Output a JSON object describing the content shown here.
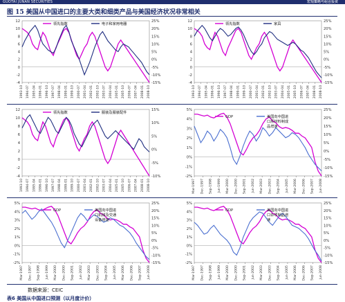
{
  "header": {
    "brand": "GUOTAI JUNAN SECURITIES",
    "right_text": "宏观策略与组合投资"
  },
  "figure": {
    "title": "图 15   美国从中国进口的主要大类和细类产品与美国经济状况非常相关"
  },
  "footer": {
    "source": "数据来源：CEIC",
    "next_title": "表6   美国从中国进口预测（以月度计价）"
  },
  "colors": {
    "pink": "#d400d4",
    "navy": "#1f2e80",
    "blue": "#4a6fd0",
    "header": "#1f2e6e"
  },
  "chart_data": [
    {
      "type": "line",
      "legend": [
        "领先指数",
        "电子和家用电器"
      ],
      "yleft": {
        "range": [
          -4,
          12
        ],
        "ticks": [
          "12",
          "10",
          "8",
          "6",
          "4",
          "2",
          "0",
          "-2",
          "-4"
        ]
      },
      "yright": {
        "range": [
          -15,
          25
        ],
        "ticks": [
          "25%",
          "20%",
          "15%",
          "10%",
          "5%",
          "0%",
          "-5%",
          "-10%",
          "-15%"
        ]
      },
      "xticks": [
        "1993-10",
        "1994-07",
        "1995-04",
        "1996-01",
        "1996-10",
        "1997-07",
        "1998-04",
        "1999-01",
        "1999-10",
        "2000-07",
        "2001-04",
        "2002-01",
        "2002-10",
        "2003-07",
        "2004-04",
        "2005-01",
        "2005-10",
        "2006-07",
        "2007-04",
        "2008-01",
        "2008-10"
      ],
      "series": [
        {
          "name": "领先指数",
          "axis": "left",
          "color": "pink",
          "values": [
            10,
            9.5,
            9,
            8,
            6,
            5,
            4.5,
            7,
            9,
            8,
            6,
            4,
            3,
            5,
            6.5,
            8,
            9.5,
            10,
            9,
            7,
            5,
            3,
            2,
            3.5,
            5,
            6,
            8,
            9,
            8,
            6,
            4,
            2,
            0,
            -1,
            0,
            2,
            4,
            6,
            7,
            6,
            5,
            4,
            3,
            2,
            1,
            0,
            -1,
            -2,
            -3,
            -4
          ]
        },
        {
          "name": "电子和家用电器",
          "axis": "right",
          "color": "navy",
          "values": [
            8,
            12,
            15,
            18,
            20,
            22,
            19,
            14,
            10,
            8,
            6,
            5,
            4,
            7,
            12,
            16,
            20,
            22,
            18,
            12,
            8,
            4,
            0,
            -5,
            -10,
            -6,
            -2,
            3,
            8,
            12,
            16,
            18,
            15,
            12,
            10,
            8,
            6,
            5,
            8,
            10,
            9,
            8,
            6,
            4,
            2,
            0,
            -2,
            -5,
            -8,
            -10
          ]
        }
      ]
    },
    {
      "type": "line",
      "legend": [
        "领先指数",
        "家具"
      ],
      "yleft": {
        "range": [
          -4,
          12
        ],
        "ticks": [
          "12",
          "10",
          "8",
          "6",
          "4",
          "2",
          "0",
          "-2",
          "-4"
        ]
      },
      "yright": {
        "range": [
          -15,
          25
        ],
        "ticks": [
          "25%",
          "20%",
          "15%",
          "10%",
          "5%",
          "0%",
          "-5%",
          "-10%",
          "-15%"
        ]
      },
      "xticks": [
        "1993-10",
        "1994-07",
        "1995-04",
        "1996-01",
        "1996-10",
        "1997-07",
        "1998-04",
        "1999-01",
        "1999-10",
        "2000-07",
        "2001-04",
        "2002-01",
        "2002-10",
        "2003-07",
        "2004-04",
        "2005-01",
        "2005-10",
        "2006-07",
        "2007-04",
        "2008-01",
        "2008-10"
      ],
      "series": [
        {
          "name": "领先指数",
          "axis": "left",
          "color": "pink",
          "values": [
            10,
            9.5,
            9,
            8,
            6,
            5,
            4.5,
            7,
            9,
            8,
            6,
            4,
            3,
            5,
            6.5,
            8,
            9.5,
            10,
            9,
            7,
            5,
            3,
            2,
            3.5,
            5,
            6,
            8,
            9,
            8,
            6,
            4,
            2,
            0,
            -1,
            0,
            2,
            4,
            6,
            7,
            6,
            5,
            4,
            3,
            2,
            1,
            0,
            -1,
            -2,
            -3,
            -4
          ]
        },
        {
          "name": "家具",
          "axis": "right",
          "color": "navy",
          "values": [
            15,
            18,
            20,
            22,
            20,
            17,
            14,
            12,
            15,
            18,
            20,
            19,
            17,
            15,
            16,
            18,
            20,
            21,
            19,
            16,
            12,
            8,
            5,
            3,
            5,
            8,
            10,
            14,
            16,
            18,
            17,
            15,
            13,
            12,
            11,
            10,
            9,
            10,
            11,
            10,
            8,
            6,
            5,
            3,
            1,
            -2,
            -5,
            -8,
            -10,
            -12
          ]
        }
      ]
    },
    {
      "type": "line",
      "legend": [
        "领先指数",
        "服装及服装配件"
      ],
      "yleft": {
        "range": [
          -4,
          12
        ],
        "ticks": [
          "12",
          "10",
          "8",
          "6",
          "4",
          "2",
          "0",
          "-2",
          "-4"
        ]
      },
      "yright": {
        "range": [
          -10,
          15
        ],
        "ticks": [
          "15%",
          "10%",
          "5%",
          "0%",
          "-5%",
          "-10%"
        ]
      },
      "xticks": [
        "1993-10",
        "1994-07",
        "1995-04",
        "1996-01",
        "1996-10",
        "1997-07",
        "1998-04",
        "1999-01",
        "1999-10",
        "2000-07",
        "2001-04",
        "2002-01",
        "2002-10",
        "2003-07",
        "2004-04",
        "2005-01",
        "2005-10",
        "2006-07",
        "2007-04",
        "2008-01",
        "2008-10"
      ],
      "series": [
        {
          "name": "领先指数",
          "axis": "left",
          "color": "pink",
          "values": [
            10,
            9.5,
            9,
            8,
            6,
            5,
            4.5,
            7,
            9,
            8,
            6,
            4,
            3,
            5,
            6.5,
            8,
            9.5,
            10,
            9,
            7,
            5,
            3,
            2,
            3.5,
            5,
            6,
            8,
            9,
            8,
            6,
            4,
            2,
            0,
            -1,
            0,
            2,
            4,
            6,
            7,
            6,
            5,
            4,
            3,
            2,
            1,
            0,
            -1,
            -2,
            -3,
            -4
          ]
        },
        {
          "name": "服装及服装配件",
          "axis": "right",
          "color": "navy",
          "values": [
            8,
            10,
            12,
            13,
            11,
            9,
            7,
            6,
            8,
            10,
            12,
            11,
            9,
            7,
            6,
            8,
            10,
            12,
            11,
            9,
            6,
            4,
            2,
            1,
            3,
            5,
            7,
            9,
            10,
            11,
            9,
            7,
            5,
            4,
            5,
            6,
            7,
            6,
            5,
            4,
            3,
            2,
            1,
            0,
            2,
            4,
            3,
            1,
            0,
            -1
          ]
        }
      ]
    },
    {
      "type": "line",
      "legend": [
        "GDP",
        "美国向中国进口原材料制成品增速"
      ],
      "yleft": {
        "range": [
          -2,
          5
        ],
        "ticks": [
          "5%",
          "4%",
          "3%",
          "2%",
          "1%",
          "0%",
          "-1%",
          "-2%"
        ]
      },
      "yright": {
        "range": [
          -15,
          25
        ],
        "ticks": [
          "25%",
          "20%",
          "15%",
          "10%",
          "5%",
          "0%",
          "-5%",
          "-10%",
          "-15%"
        ]
      },
      "xticks": [
        "Mar-1997",
        "Dec-1997",
        "Sep-1998",
        "Jun-1999",
        "Mar-2000",
        "Dec-2000",
        "Sep-2001",
        "Jun-2002",
        "Mar-2003",
        "Dec-2003",
        "Sep-2004",
        "Jun-2005",
        "Mar-2006",
        "Dec-2006",
        "Sep-2007",
        "Jun-2008"
      ],
      "series": [
        {
          "name": "GDP",
          "axis": "left",
          "color": "pink",
          "values": [
            4.5,
            4.5,
            4.4,
            4.3,
            4.4,
            4.2,
            4.1,
            4.3,
            4.5,
            4.6,
            4.2,
            3.5,
            2.5,
            1.5,
            0.5,
            0.2,
            0.8,
            1.5,
            2.0,
            2.3,
            2.8,
            3.5,
            4.0,
            4.2,
            3.8,
            3.6,
            3.2,
            3.0,
            3.1,
            3.0,
            2.8,
            2.5,
            2.5,
            2.2,
            2.0,
            1.5,
            1.0,
            -0.5,
            -1.5,
            -2.0
          ]
        },
        {
          "name": "美国向中国进口原材料制成品增速",
          "axis": "right",
          "color": "blue",
          "values": [
            15,
            10,
            5,
            8,
            12,
            10,
            6,
            9,
            13,
            11,
            8,
            2,
            -5,
            -8,
            -3,
            3,
            8,
            12,
            10,
            6,
            9,
            14,
            12,
            9,
            11,
            14,
            12,
            10,
            8,
            9,
            11,
            10,
            8,
            5,
            2,
            -2,
            -5,
            -8,
            -10,
            -12
          ]
        }
      ]
    },
    {
      "type": "line",
      "legend": [
        "GDP",
        "美国向中国进口机械及交通设备增速"
      ],
      "yleft": {
        "range": [
          -2,
          5
        ],
        "ticks": [
          "5%",
          "4%",
          "3%",
          "2%",
          "1%",
          "0%",
          "-1%",
          "-2%"
        ]
      },
      "yright": {
        "range": [
          -15,
          25
        ],
        "ticks": [
          "25%",
          "20%",
          "15%",
          "10%",
          "5%",
          "0%",
          "-5%",
          "-10%",
          "-15%"
        ]
      },
      "xticks": [
        "Mar-1997",
        "Dec-1997",
        "Sep-1998",
        "Jun-1999",
        "Mar-2000",
        "Dec-2000",
        "Sep-2001",
        "Jun-2002",
        "Mar-2003",
        "Dec-2003",
        "Sep-2004",
        "Jun-2005",
        "Mar-2006",
        "Dec-2006",
        "Sep-2007",
        "Jun-2008"
      ],
      "series": [
        {
          "name": "GDP",
          "axis": "left",
          "color": "pink",
          "values": [
            4.5,
            4.5,
            4.4,
            4.3,
            4.4,
            4.2,
            4.1,
            4.3,
            4.5,
            4.6,
            4.2,
            3.5,
            2.5,
            1.5,
            0.5,
            0.2,
            0.8,
            1.5,
            2.0,
            2.3,
            2.8,
            3.5,
            4.0,
            4.2,
            3.8,
            3.6,
            3.2,
            3.0,
            3.1,
            3.0,
            2.8,
            2.5,
            2.5,
            2.2,
            2.0,
            1.5,
            1.0,
            -0.5,
            -1.5,
            -2.0
          ]
        },
        {
          "name": "美国向中国进口机械及交通设备增速",
          "axis": "right",
          "color": "blue",
          "values": [
            18,
            20,
            17,
            14,
            16,
            19,
            21,
            18,
            15,
            12,
            8,
            3,
            -2,
            -5,
            0,
            5,
            10,
            15,
            18,
            16,
            13,
            15,
            17,
            16,
            14,
            12,
            13,
            15,
            14,
            12,
            10,
            9,
            7,
            5,
            2,
            -2,
            -5,
            -8,
            -11,
            -13
          ]
        }
      ]
    },
    {
      "type": "line",
      "legend": [
        "GDP",
        "美国向中国进口杂项制品增速"
      ],
      "yleft": {
        "range": [
          -2,
          5
        ],
        "ticks": [
          "5%",
          "4%",
          "3%",
          "2%",
          "1%",
          "0%",
          "-1%",
          "-2%"
        ]
      },
      "yright": {
        "range": [
          -15,
          25
        ],
        "ticks": [
          "25%",
          "20%",
          "15%",
          "10%",
          "5%",
          "0%",
          "-5%",
          "-10%",
          "-15%"
        ]
      },
      "xticks": [
        "Mar-1997",
        "Dec-1997",
        "Sep-1998",
        "Jun-1999",
        "Mar-2000",
        "Dec-2000",
        "Sep-2001",
        "Jun-2002",
        "Mar-2003",
        "Dec-2003",
        "Sep-2004",
        "Jun-2005",
        "Mar-2006",
        "Dec-2006",
        "Sep-2007",
        "Jun-2008"
      ],
      "series": [
        {
          "name": "GDP",
          "axis": "left",
          "color": "pink",
          "values": [
            4.5,
            4.5,
            4.4,
            4.3,
            4.4,
            4.2,
            4.1,
            4.3,
            4.5,
            4.6,
            4.2,
            3.5,
            2.5,
            1.5,
            0.5,
            0.2,
            0.8,
            1.5,
            2.0,
            2.3,
            2.8,
            3.5,
            4.0,
            4.2,
            3.8,
            3.6,
            3.2,
            3.0,
            3.1,
            3.0,
            2.8,
            2.5,
            2.5,
            2.2,
            2.0,
            1.5,
            1.0,
            -0.5,
            -1.5,
            -2.0
          ]
        },
        {
          "name": "美国向中国进口杂项制品增速",
          "axis": "right",
          "color": "blue",
          "values": [
            12,
            10,
            7,
            4,
            5,
            8,
            10,
            7,
            4,
            2,
            0,
            -3,
            -8,
            -10,
            -5,
            2,
            7,
            12,
            15,
            17,
            19,
            18,
            15,
            12,
            10,
            13,
            16,
            18,
            16,
            13,
            10,
            9,
            8,
            6,
            4,
            1,
            -3,
            -7,
            -10,
            -14
          ]
        }
      ]
    }
  ]
}
